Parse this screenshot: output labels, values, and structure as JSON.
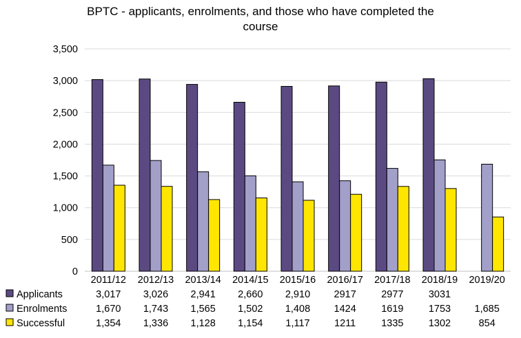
{
  "chart_data": {
    "type": "bar",
    "title": "BPTC - applicants, enrolments, and those who have completed the course",
    "title_lines": [
      "BPTC - applicants, enrolments, and those who have completed the",
      "course"
    ],
    "categories": [
      "2011/12",
      "2012/13",
      "2013/14",
      "2014/15",
      "2015/16",
      "2016/17",
      "2017/18",
      "2018/19",
      "2019/20"
    ],
    "series": [
      {
        "name": "Applicants",
        "color": "#5b4a82",
        "values": [
          3017,
          3026,
          2941,
          2660,
          2910,
          2917,
          2977,
          3031,
          null
        ],
        "labels": [
          "3,017",
          "3,026",
          "2,941",
          "2,660",
          "2,910",
          "2917",
          "2977",
          "3031",
          ""
        ]
      },
      {
        "name": "Enrolments",
        "color": "#a29fc9",
        "values": [
          1670,
          1743,
          1565,
          1502,
          1408,
          1424,
          1619,
          1753,
          1685
        ],
        "labels": [
          "1,670",
          "1,743",
          "1,565",
          "1,502",
          "1,408",
          "1424",
          "1619",
          "1753",
          "1,685"
        ]
      },
      {
        "name": "Successful",
        "color": "#ffe600",
        "values": [
          1354,
          1336,
          1128,
          1154,
          1117,
          1211,
          1335,
          1302,
          854
        ],
        "labels": [
          "1,354",
          "1,336",
          "1,128",
          "1,154",
          "1,117",
          "1211",
          "1335",
          "1302",
          "854"
        ]
      }
    ],
    "ylim": [
      0,
      3500
    ],
    "yticks": [
      0,
      500,
      1000,
      1500,
      2000,
      2500,
      3000,
      3500
    ],
    "ytick_labels": [
      "0",
      "500",
      "1,000",
      "1,500",
      "2,000",
      "2,500",
      "3,000",
      "3,500"
    ],
    "grid": true,
    "legend": "data-table"
  }
}
